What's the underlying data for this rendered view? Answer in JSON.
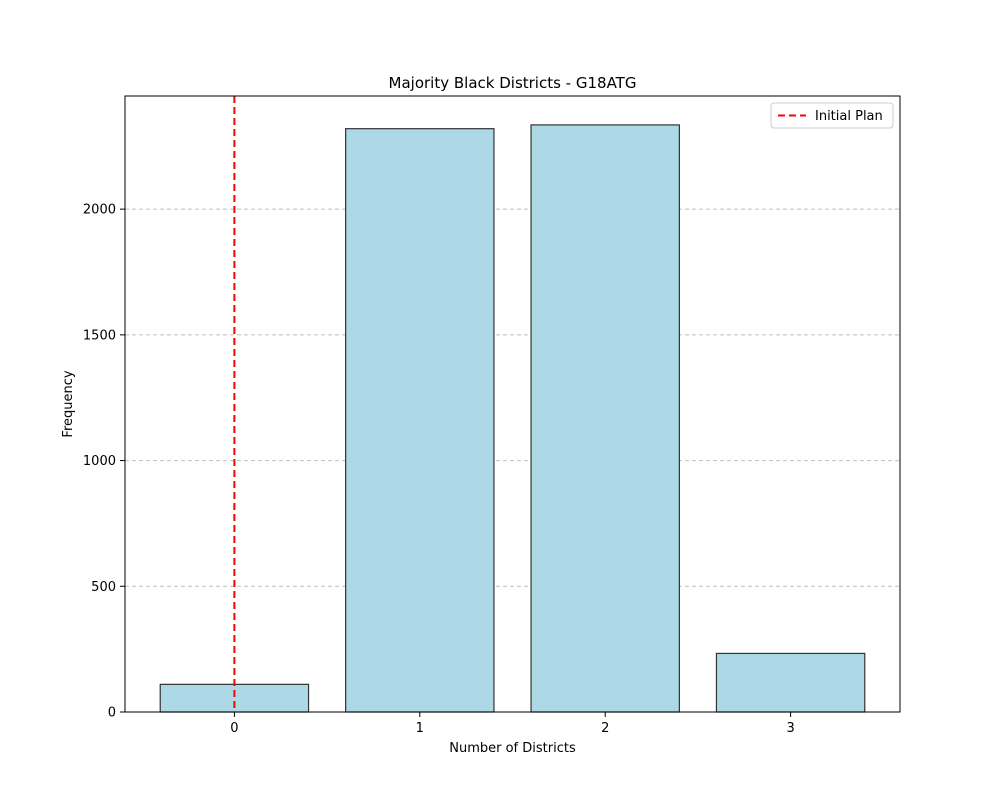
{
  "chart_data": {
    "type": "bar",
    "title": "Majority Black Districts - G18ATG",
    "xlabel": "Number of Districts",
    "ylabel": "Frequency",
    "categories": [
      "0",
      "1",
      "2",
      "3"
    ],
    "x": [
      0,
      1,
      2,
      3
    ],
    "values": [
      110,
      2320,
      2335,
      233
    ],
    "xlim": [
      -0.59,
      3.59
    ],
    "ylim": [
      0,
      2450
    ],
    "yticks": [
      0,
      500,
      1000,
      1500,
      2000
    ],
    "ytick_labels": [
      "0",
      "500",
      "1000",
      "1500",
      "2000"
    ],
    "grid": {
      "axis": "y",
      "style": "dashed"
    },
    "legend": {
      "position": "top-right",
      "entries": [
        "Initial Plan"
      ]
    },
    "reference_lines": [
      {
        "name": "Initial Plan",
        "x": 0,
        "color": "#ff0000",
        "style": "dashed"
      }
    ],
    "colors": {
      "bar_fill": "#add8e6",
      "bar_edge": "#333333",
      "grid": "#c0c0c0"
    }
  }
}
